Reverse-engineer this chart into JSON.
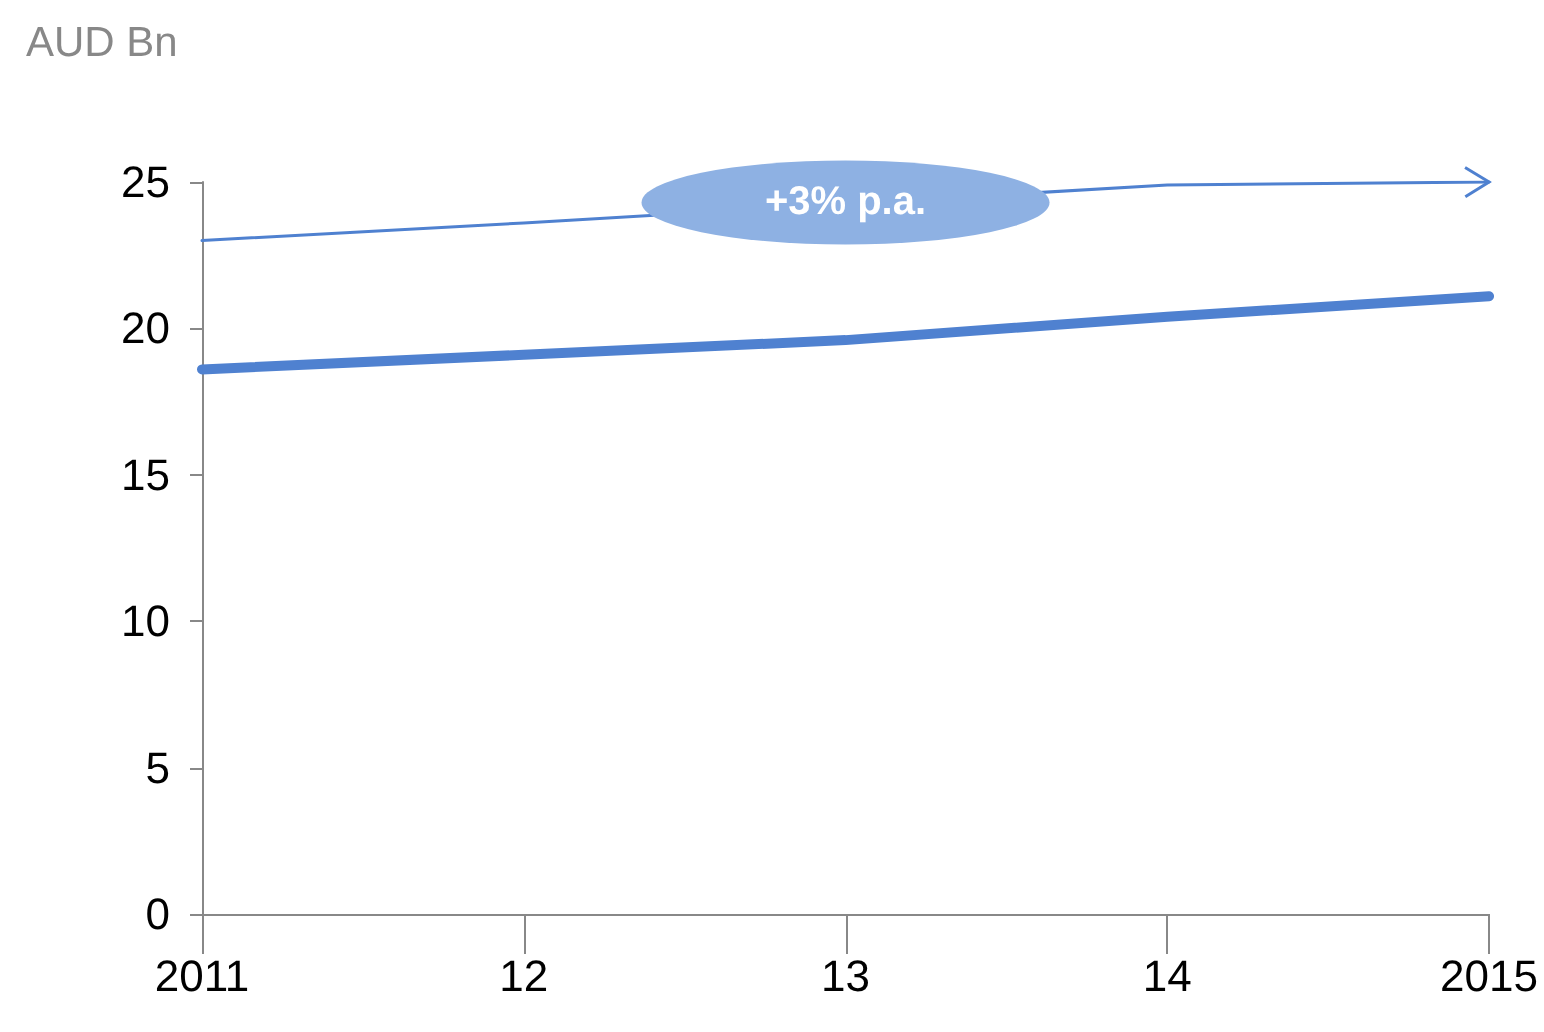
{
  "chart_data": {
    "type": "line",
    "ylabel": "AUD Bn",
    "categories": [
      "2011",
      "12",
      "13",
      "14",
      "2015"
    ],
    "series": [
      {
        "color": "#4f81d0",
        "values": [
          18.6,
          19.1,
          19.6,
          20.4,
          21.1
        ]
      },
      {
        "color": "#4f81d0",
        "values": [
          23,
          23.6,
          null,
          24.9,
          25
        ]
      }
    ],
    "ylim": [
      0,
      25
    ],
    "yticks": [
      0,
      5,
      10,
      15,
      20,
      25
    ],
    "grid": false,
    "marker": "none",
    "line_style": "solid",
    "annotations": [
      {
        "text": "+3% p.a.",
        "x": "13",
        "y": 24.3
      }
    ]
  }
}
